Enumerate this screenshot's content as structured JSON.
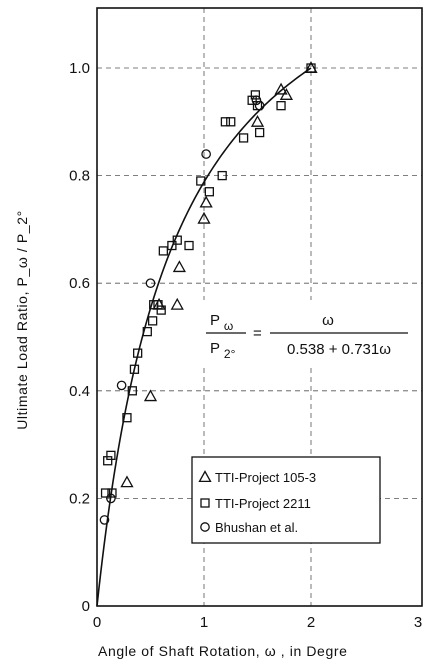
{
  "chart_data": {
    "type": "scatter",
    "xlabel": "Angle of Shaft Rotation, ω , in Degre",
    "ylabel": "Ultimate Load Ratio, P_ω / P_2°",
    "xlim": [
      0,
      3
    ],
    "ylim": [
      0,
      1.1
    ],
    "x_ticks": [
      "0",
      "1",
      "2",
      "3"
    ],
    "y_ticks": [
      "0",
      "0.2",
      "0.4",
      "0.6",
      "0.8",
      "1.0"
    ],
    "grid": true,
    "legend_position": "lower-right",
    "formula": {
      "lhs_num": "P",
      "lhs_num_sub": "ω",
      "lhs_den": "P",
      "lhs_den_sub": "2°",
      "equals": "=",
      "rhs_num": "ω",
      "rhs_den": "0.538 + 0.731ω"
    },
    "fit_curve": {
      "equation": "y = x / (0.538 + 0.731 x)",
      "a": 0.538,
      "b": 0.731,
      "x_range": [
        0,
        2
      ]
    },
    "series": [
      {
        "name": "TTI-Project 105-3",
        "marker": "triangle",
        "points": [
          [
            0.28,
            0.23
          ],
          [
            0.5,
            0.39
          ],
          [
            0.58,
            0.56
          ],
          [
            0.75,
            0.56
          ],
          [
            0.77,
            0.63
          ],
          [
            1.0,
            0.72
          ],
          [
            1.02,
            0.75
          ],
          [
            1.5,
            0.9
          ],
          [
            1.72,
            0.96
          ],
          [
            1.77,
            0.95
          ],
          [
            2.0,
            1.0
          ]
        ]
      },
      {
        "name": "TTI-Project 2211",
        "marker": "square",
        "points": [
          [
            0.08,
            0.21
          ],
          [
            0.1,
            0.27
          ],
          [
            0.13,
            0.28
          ],
          [
            0.14,
            0.21
          ],
          [
            0.28,
            0.35
          ],
          [
            0.33,
            0.4
          ],
          [
            0.35,
            0.44
          ],
          [
            0.38,
            0.47
          ],
          [
            0.47,
            0.51
          ],
          [
            0.52,
            0.53
          ],
          [
            0.53,
            0.56
          ],
          [
            0.57,
            0.56
          ],
          [
            0.6,
            0.55
          ],
          [
            0.62,
            0.66
          ],
          [
            0.7,
            0.67
          ],
          [
            0.75,
            0.68
          ],
          [
            0.86,
            0.67
          ],
          [
            0.97,
            0.79
          ],
          [
            1.05,
            0.77
          ],
          [
            1.17,
            0.8
          ],
          [
            1.2,
            0.9
          ],
          [
            1.25,
            0.9
          ],
          [
            1.37,
            0.87
          ],
          [
            1.45,
            0.94
          ],
          [
            1.48,
            0.95
          ],
          [
            1.5,
            0.93
          ],
          [
            1.52,
            0.88
          ],
          [
            1.72,
            0.93
          ],
          [
            2.0,
            1.0
          ]
        ]
      },
      {
        "name": "Bhushan et al.",
        "marker": "circle",
        "points": [
          [
            0.07,
            0.16
          ],
          [
            0.13,
            0.2
          ],
          [
            0.23,
            0.41
          ],
          [
            0.5,
            0.6
          ],
          [
            1.02,
            0.84
          ],
          [
            1.49,
            0.94
          ],
          [
            1.52,
            0.93
          ]
        ]
      }
    ]
  }
}
